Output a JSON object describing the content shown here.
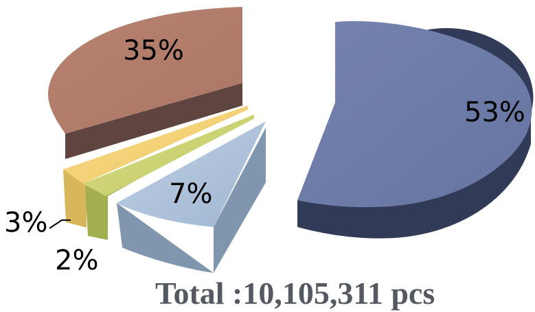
{
  "chart_data": {
    "type": "pie",
    "title": "",
    "slices": [
      {
        "label": "53%",
        "value": 53,
        "color": "#6f7da8"
      },
      {
        "label": "35%",
        "value": 35,
        "color": "#b27d6d"
      },
      {
        "label": "3%",
        "value": 3,
        "color": "#f2cf78"
      },
      {
        "label": "2%",
        "value": 2,
        "color": "#c9d36d"
      },
      {
        "label": "7%",
        "value": 7,
        "color": "#a8bfd9"
      }
    ],
    "exploded": true,
    "three_d": true,
    "total_text": "Total :10,105,311 pcs"
  }
}
